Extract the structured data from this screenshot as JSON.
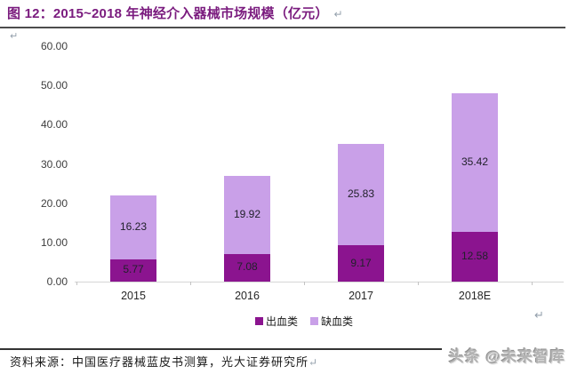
{
  "title": {
    "text": "图 12：2015~2018 年神经介入器械市场规模（亿元）",
    "color": "#7A1B7E"
  },
  "line_break_mark": "↵",
  "chart_data": {
    "type": "bar",
    "stacked": true,
    "title": "2015~2018 年神经介入器械市场规模（亿元）",
    "categories": [
      "2015",
      "2016",
      "2017",
      "2018E"
    ],
    "series": [
      {
        "name": "出血类",
        "color": "#8B148F",
        "values": [
          5.77,
          7.08,
          9.17,
          12.58
        ]
      },
      {
        "name": "缺血类",
        "color": "#C9A0E8",
        "values": [
          16.23,
          19.92,
          25.83,
          35.42
        ]
      }
    ],
    "ylim": [
      0,
      60
    ],
    "yticks": [
      60,
      50,
      40,
      30,
      20,
      10,
      0
    ],
    "ytick_labels": [
      "60.00",
      "50.00",
      "40.00",
      "30.00",
      "20.00",
      "10.00",
      "0.00"
    ],
    "xlabel": "",
    "ylabel": "",
    "grid": false,
    "legend_position": "bottom",
    "value_labels_visible": true
  },
  "footer": {
    "source_text": "资料来源：中国医疗器械蓝皮书测算，光大证券研究所"
  },
  "watermark": {
    "text": "头条 @未来智库"
  }
}
